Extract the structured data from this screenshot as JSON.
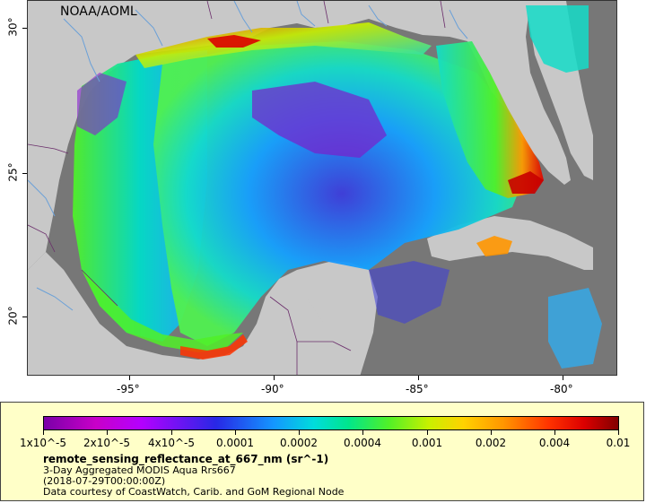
{
  "map": {
    "attribution": "NOAA/AOML",
    "x_ticks": [
      "-95°",
      "-90°",
      "-85°",
      "-80°"
    ],
    "y_ticks": [
      "30°",
      "25°",
      "20°"
    ],
    "colors": {
      "land": "#c8c8c8",
      "no_data": "#777777",
      "rivers": "#6aa0d8",
      "borders": "#6a2c6a"
    }
  },
  "legend": {
    "variable": "remote_sensing_reflectance_at_667_nm (sr^-1)",
    "line1": "3-Day Aggregated MODIS Aqua Rrs667",
    "line2": "(2018-07-29T00:00:00Z)",
    "line3": "Data courtesy of CoastWatch, Carib. and GoM Regional Node",
    "colorbar_labels": [
      "1x10^-5",
      "2x10^-5",
      "4x10^-5",
      "0.0001",
      "0.0002",
      "0.0004",
      "0.001",
      "0.002",
      "0.004",
      "0.01"
    ],
    "scale": "log"
  }
}
